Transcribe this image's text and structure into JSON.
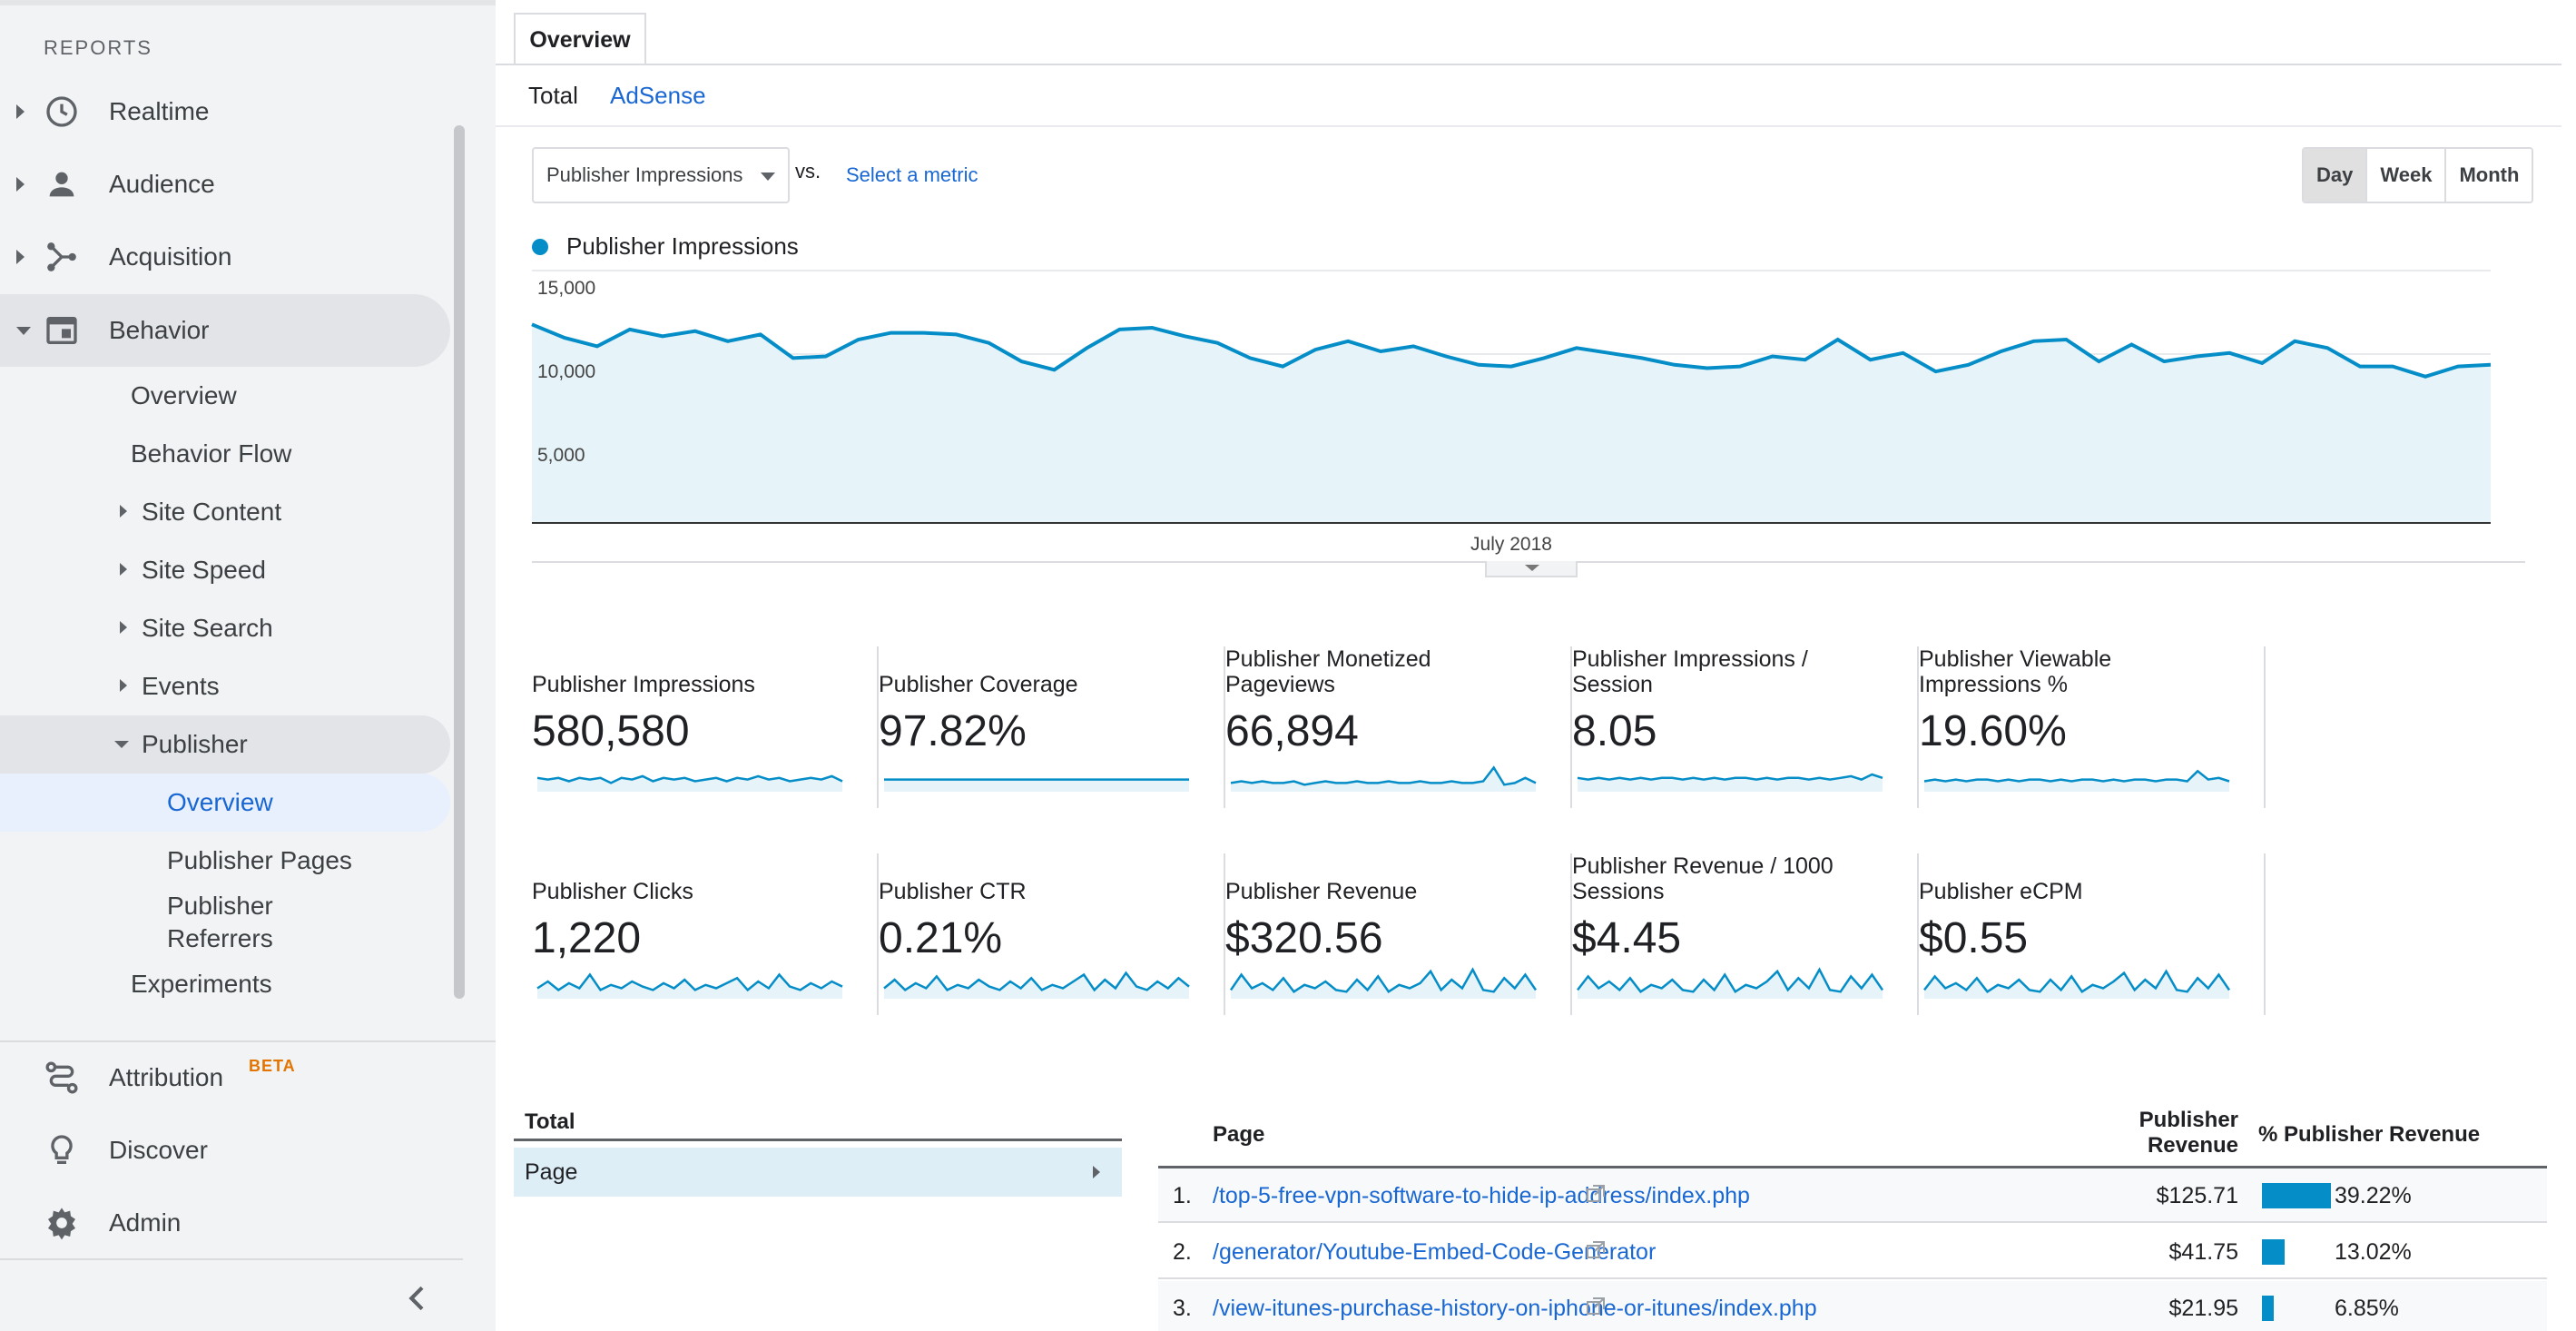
{
  "sidebar": {
    "heading": "REPORTS",
    "items": [
      {
        "label": "Realtime"
      },
      {
        "label": "Audience"
      },
      {
        "label": "Acquisition"
      },
      {
        "label": "Behavior"
      }
    ],
    "behavior_sub": {
      "overview": "Overview",
      "behavior_flow": "Behavior Flow",
      "site_content": "Site Content",
      "site_speed": "Site Speed",
      "site_search": "Site Search",
      "events": "Events",
      "publisher": "Publisher",
      "publisher_overview": "Overview",
      "publisher_pages": "Publisher Pages",
      "publisher_referrers_1": "Publisher",
      "publisher_referrers_2": "Referrers",
      "experiments": "Experiments"
    },
    "bottom": {
      "attribution": "Attribution",
      "beta": "BETA",
      "discover": "Discover",
      "admin": "Admin"
    }
  },
  "main": {
    "tab": "Overview",
    "subtabs": {
      "total": "Total",
      "adsense": "AdSense"
    },
    "metric_select": "Publisher Impressions",
    "vs": "vs.",
    "select_metric": "Select a metric",
    "period": {
      "day": "Day",
      "week": "Week",
      "month": "Month"
    },
    "legend": "Publisher Impressions"
  },
  "chart_data": {
    "type": "area",
    "series": [
      {
        "name": "Publisher Impressions",
        "color": "#058dc7",
        "values": [
          11800,
          11000,
          10500,
          11500,
          11100,
          11400,
          10800,
          11200,
          9800,
          9900,
          10900,
          11300,
          11300,
          11200,
          10700,
          9600,
          9100,
          10400,
          11500,
          11600,
          11100,
          10700,
          9800,
          9300,
          10300,
          10800,
          10200,
          10500,
          9900,
          9400,
          9300,
          9800,
          10400,
          10100,
          9800,
          9400,
          9200,
          9300,
          9900,
          9700,
          10900,
          9700,
          10100,
          9000,
          9400,
          10200,
          10800,
          10900,
          9600,
          10600,
          9600,
          9900,
          10100,
          9500,
          10800,
          10400,
          9300,
          9300,
          8700,
          9300,
          9400
        ]
      }
    ],
    "x_label": "July 2018",
    "y_ticks": [
      "15,000",
      "10,000",
      "5,000"
    ],
    "ylim": [
      0,
      15000
    ]
  },
  "scorecards": [
    {
      "title_1": "Publisher Impressions",
      "title_2": "",
      "value": "580,580",
      "spark": [
        6,
        5,
        6,
        4,
        6,
        5,
        6,
        3,
        6,
        5,
        7,
        4,
        6,
        5,
        6,
        4,
        5,
        6,
        4,
        6,
        5,
        7,
        5,
        6,
        4,
        5,
        6,
        5,
        7,
        4
      ]
    },
    {
      "title_1": "Publisher Coverage",
      "title_2": "",
      "value": "97.82%",
      "spark": [
        5,
        5,
        5,
        5,
        5,
        5,
        5,
        5,
        5,
        5,
        5,
        5,
        5,
        5,
        5,
        5,
        5,
        5,
        5,
        5,
        5,
        5,
        5,
        5,
        5,
        5,
        5,
        5,
        5,
        5
      ]
    },
    {
      "title_1": "Publisher Monetized",
      "title_2": "Pageviews",
      "value": "66,894",
      "spark": [
        3,
        4,
        3,
        4,
        3,
        3,
        4,
        2,
        3,
        4,
        3,
        3,
        4,
        3,
        3,
        4,
        3,
        3,
        4,
        3,
        3,
        4,
        3,
        3,
        4,
        12,
        2,
        3,
        6,
        3
      ]
    },
    {
      "title_1": "Publisher Impressions /",
      "title_2": "Session",
      "value": "8.05",
      "spark": [
        6,
        5,
        6,
        5,
        6,
        5,
        6,
        5,
        6,
        6,
        5,
        6,
        5,
        6,
        5,
        6,
        6,
        5,
        6,
        5,
        6,
        6,
        5,
        6,
        5,
        6,
        7,
        5,
        8,
        6
      ]
    },
    {
      "title_1": "Publisher Viewable",
      "title_2": "Impressions %",
      "value": "19.60%",
      "spark": [
        4,
        5,
        4,
        5,
        4,
        5,
        5,
        4,
        5,
        4,
        5,
        5,
        4,
        5,
        4,
        5,
        5,
        4,
        5,
        4,
        5,
        5,
        4,
        5,
        5,
        4,
        10,
        5,
        6,
        4
      ]
    },
    {
      "title_1": "Publisher Clicks",
      "title_2": "",
      "value": "1,220",
      "spark": [
        4,
        8,
        3,
        7,
        4,
        12,
        3,
        6,
        4,
        8,
        5,
        3,
        7,
        4,
        9,
        3,
        6,
        4,
        7,
        10,
        3,
        8,
        4,
        12,
        5,
        3,
        7,
        4,
        8,
        5
      ]
    },
    {
      "title_1": "Publisher CTR",
      "title_2": "",
      "value": "0.21%",
      "spark": [
        4,
        9,
        3,
        7,
        4,
        11,
        3,
        6,
        4,
        9,
        5,
        3,
        8,
        4,
        10,
        3,
        6,
        4,
        8,
        12,
        3,
        9,
        4,
        13,
        5,
        3,
        8,
        4,
        10,
        5
      ]
    },
    {
      "title_1": "Publisher Revenue",
      "title_2": "",
      "value": "$320.56",
      "spark": [
        3,
        12,
        4,
        7,
        3,
        10,
        2,
        6,
        4,
        8,
        3,
        2,
        9,
        3,
        11,
        2,
        6,
        4,
        7,
        14,
        3,
        9,
        4,
        15,
        3,
        2,
        10,
        4,
        12,
        3
      ]
    },
    {
      "title_1": "Publisher Revenue / 1000",
      "title_2": "Sessions",
      "value": "$4.45",
      "spark": [
        3,
        11,
        4,
        8,
        3,
        10,
        2,
        6,
        4,
        9,
        3,
        2,
        9,
        3,
        12,
        2,
        6,
        4,
        8,
        14,
        3,
        10,
        4,
        15,
        3,
        2,
        11,
        4,
        12,
        3
      ]
    },
    {
      "title_1": "Publisher eCPM",
      "title_2": "",
      "value": "$0.55",
      "spark": [
        3,
        11,
        4,
        7,
        3,
        10,
        2,
        6,
        4,
        9,
        3,
        2,
        9,
        3,
        11,
        2,
        6,
        4,
        8,
        13,
        3,
        9,
        4,
        14,
        3,
        2,
        10,
        4,
        12,
        3
      ]
    }
  ],
  "dimension": {
    "title": "Total",
    "row": "Page"
  },
  "table": {
    "col_page": "Page",
    "col_rev_1": "Publisher",
    "col_rev_2": "Revenue",
    "col_pct": "% Publisher Revenue",
    "rows": [
      {
        "num": "1.",
        "page": "/top-5-free-vpn-software-to-hide-ip-address/index.php",
        "revenue": "$125.71",
        "pct": "39.22%",
        "pct_value": 39.22
      },
      {
        "num": "2.",
        "page": "/generator/Youtube-Embed-Code-Generator",
        "revenue": "$41.75",
        "pct": "13.02%",
        "pct_value": 13.02
      },
      {
        "num": "3.",
        "page": "/view-itunes-purchase-history-on-iphone-or-itunes/index.php",
        "revenue": "$21.95",
        "pct": "6.85%",
        "pct_value": 6.85
      }
    ]
  }
}
